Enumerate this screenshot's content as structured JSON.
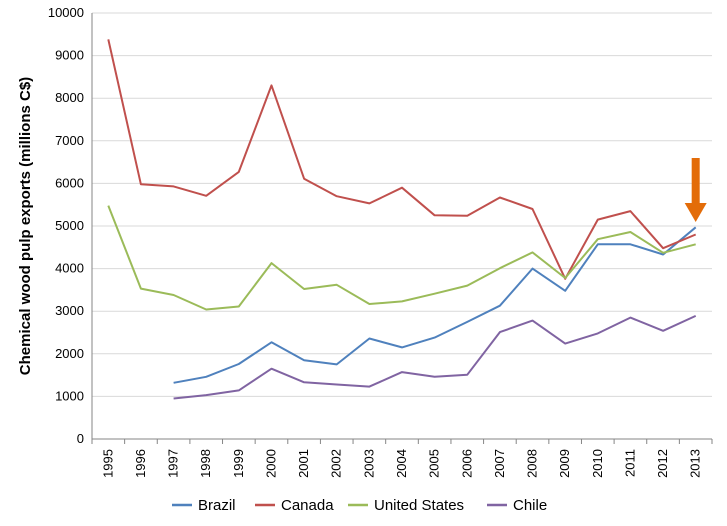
{
  "chart_data": {
    "type": "line",
    "title": "",
    "xlabel": "",
    "ylabel": "Chemical wood pulp exports (millions C$)",
    "ylim": [
      0,
      10000
    ],
    "yticks": [
      0,
      1000,
      2000,
      3000,
      4000,
      5000,
      6000,
      7000,
      8000,
      9000,
      10000
    ],
    "x": [
      "1995",
      "1996",
      "1997",
      "1998",
      "1999",
      "2000",
      "2001",
      "2002",
      "2003",
      "2004",
      "2005",
      "2006",
      "2007",
      "2008",
      "2009",
      "2010",
      "2011",
      "2012",
      "2013"
    ],
    "grid": "horizontal",
    "legend_position": "bottom",
    "series": [
      {
        "name": "Brazil",
        "color": "#4f81bd",
        "values": [
          null,
          null,
          1320,
          1460,
          1760,
          2270,
          1850,
          1750,
          2360,
          2150,
          2380,
          2750,
          3130,
          4000,
          3480,
          4570,
          4570,
          4330,
          4970
        ]
      },
      {
        "name": "Canada",
        "color": "#c0504d",
        "values": [
          9380,
          5980,
          5930,
          5710,
          6270,
          8300,
          6110,
          5700,
          5530,
          5900,
          5250,
          5240,
          5670,
          5400,
          3760,
          5150,
          5350,
          4480,
          4800
        ]
      },
      {
        "name": "United States",
        "color": "#9bbb59",
        "values": [
          5480,
          3530,
          3380,
          3040,
          3110,
          4130,
          3520,
          3620,
          3170,
          3230,
          3410,
          3600,
          4010,
          4380,
          3780,
          4690,
          4860,
          4370,
          4570
        ]
      },
      {
        "name": "Chile",
        "color": "#8064a2",
        "values": [
          null,
          null,
          950,
          1030,
          1140,
          1650,
          1330,
          1280,
          1230,
          1570,
          1460,
          1510,
          2510,
          2780,
          2240,
          2480,
          2850,
          2540,
          2890
        ]
      }
    ],
    "annotation": {
      "type": "arrow",
      "direction": "down",
      "color": "#e36c09",
      "x": "2013"
    }
  }
}
